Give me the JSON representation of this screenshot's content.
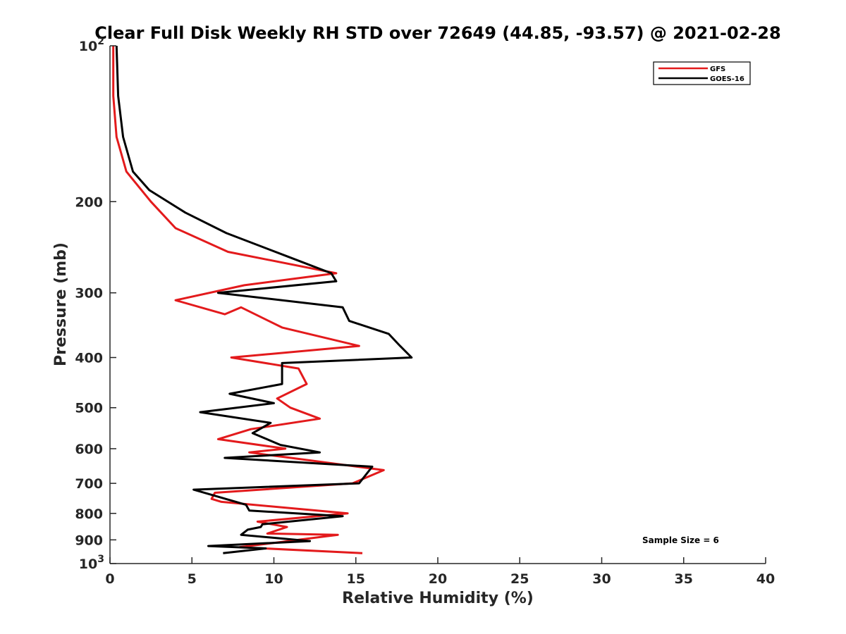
{
  "chart_data": {
    "type": "line",
    "title": "Clear Full Disk Weekly RH STD over 72649 (44.85, -93.57) @ 2021-02-28",
    "xlabel": "Relative Humidity (%)",
    "ylabel": "Pressure (mb)",
    "xlim": [
      0,
      40
    ],
    "ylim": [
      100,
      1000
    ],
    "y_scale": "log",
    "y_reversed": true,
    "grid": false,
    "legend_position": "top-right",
    "x_ticks": [
      0,
      5,
      10,
      15,
      20,
      25,
      30,
      35,
      40
    ],
    "x_tick_labels": [
      "0",
      "5",
      "10",
      "15",
      "20",
      "25",
      "30",
      "35",
      "40"
    ],
    "y_ticks": [
      100,
      200,
      300,
      400,
      500,
      600,
      700,
      800,
      900,
      1000
    ],
    "y_tick_labels": [
      {
        "base": "10",
        "exp": "2"
      },
      {
        "base": "200",
        "exp": ""
      },
      {
        "base": "300",
        "exp": ""
      },
      {
        "base": "400",
        "exp": ""
      },
      {
        "base": "500",
        "exp": ""
      },
      {
        "base": "600",
        "exp": ""
      },
      {
        "base": "700",
        "exp": ""
      },
      {
        "base": "800",
        "exp": ""
      },
      {
        "base": "900",
        "exp": ""
      },
      {
        "base": "10",
        "exp": "3"
      }
    ],
    "annotation": "Sample Size = 6",
    "series": [
      {
        "name": "GFS",
        "color": "#e31a1c",
        "points": [
          [
            0.2,
            100
          ],
          [
            0.2,
            125
          ],
          [
            0.4,
            150
          ],
          [
            1.0,
            175
          ],
          [
            2.5,
            200
          ],
          [
            4.0,
            225
          ],
          [
            7.2,
            250
          ],
          [
            13.8,
            275
          ],
          [
            8.2,
            290
          ],
          [
            4.0,
            310
          ],
          [
            7.0,
            330
          ],
          [
            8.0,
            320
          ],
          [
            10.5,
            350
          ],
          [
            15.2,
            380
          ],
          [
            7.4,
            400
          ],
          [
            11.5,
            420
          ],
          [
            12.0,
            450
          ],
          [
            10.2,
            480
          ],
          [
            11.0,
            500
          ],
          [
            12.8,
            525
          ],
          [
            8.6,
            550
          ],
          [
            6.6,
            575
          ],
          [
            10.7,
            600
          ],
          [
            8.5,
            610
          ],
          [
            16.7,
            660
          ],
          [
            14.8,
            700
          ],
          [
            6.4,
            730
          ],
          [
            6.2,
            750
          ],
          [
            6.8,
            760
          ],
          [
            14.5,
            800
          ],
          [
            9.0,
            830
          ],
          [
            10.8,
            850
          ],
          [
            9.6,
            875
          ],
          [
            13.9,
            880
          ],
          [
            7.9,
            930
          ],
          [
            15.4,
            955
          ]
        ]
      },
      {
        "name": "GOES-16",
        "color": "#000000",
        "points": [
          [
            0.4,
            100
          ],
          [
            0.5,
            125
          ],
          [
            0.8,
            150
          ],
          [
            1.4,
            175
          ],
          [
            2.4,
            190
          ],
          [
            4.6,
            210
          ],
          [
            7.1,
            230
          ],
          [
            10.8,
            255
          ],
          [
            13.5,
            275
          ],
          [
            13.8,
            285
          ],
          [
            6.6,
            300
          ],
          [
            14.2,
            320
          ],
          [
            14.6,
            340
          ],
          [
            17.0,
            360
          ],
          [
            17.7,
            380
          ],
          [
            18.4,
            400
          ],
          [
            10.5,
            410
          ],
          [
            10.5,
            450
          ],
          [
            7.3,
            470
          ],
          [
            10.0,
            490
          ],
          [
            5.5,
            510
          ],
          [
            9.8,
            535
          ],
          [
            8.7,
            560
          ],
          [
            10.4,
            590
          ],
          [
            12.8,
            610
          ],
          [
            7.0,
            625
          ],
          [
            16.0,
            650
          ],
          [
            15.2,
            700
          ],
          [
            5.1,
            720
          ],
          [
            8.3,
            770
          ],
          [
            8.5,
            790
          ],
          [
            14.2,
            810
          ],
          [
            9.3,
            840
          ],
          [
            9.2,
            850
          ],
          [
            8.4,
            860
          ],
          [
            8.0,
            880
          ],
          [
            12.2,
            905
          ],
          [
            6.0,
            925
          ],
          [
            9.5,
            935
          ],
          [
            6.9,
            955
          ]
        ]
      }
    ]
  }
}
